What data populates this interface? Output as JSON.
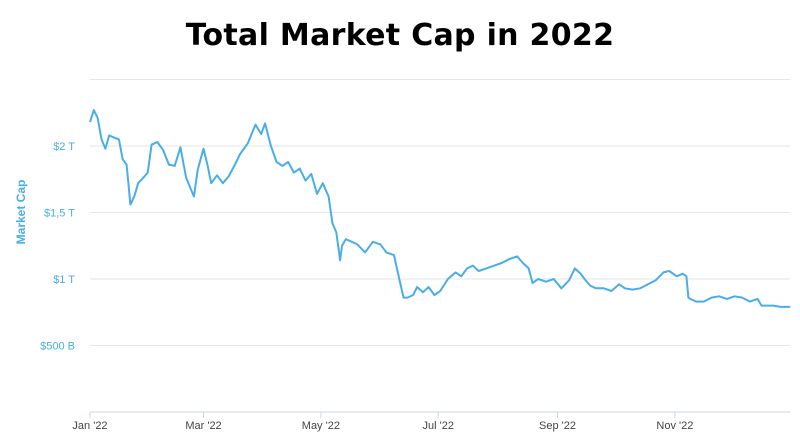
{
  "chart_data": {
    "type": "line",
    "title": "Total Market Cap in 2022",
    "xlabel": "",
    "ylabel": "Market Cap",
    "x_tick_labels": [
      "Jan '22",
      "Mar '22",
      "May '22",
      "Jul '22",
      "Sep '22",
      "Nov '22"
    ],
    "y_tick_labels": [
      "$500 B",
      "$1 T",
      "$1,5 T",
      "$2 T"
    ],
    "y_tick_values": [
      500,
      1000,
      1500,
      2000
    ],
    "ylim": [
      0,
      2550
    ],
    "grid": true,
    "line_color": "#4aaee6",
    "unit": "billions USD",
    "series": [
      {
        "x": [
          "2022-01-01",
          "2022-01-03",
          "2022-01-05",
          "2022-01-07",
          "2022-01-09",
          "2022-01-11",
          "2022-01-14",
          "2022-01-16",
          "2022-01-18",
          "2022-01-20",
          "2022-01-22",
          "2022-01-24",
          "2022-01-26",
          "2022-01-28",
          "2022-01-31",
          "2022-02-02",
          "2022-02-05",
          "2022-02-08",
          "2022-02-11",
          "2022-02-14",
          "2022-02-17",
          "2022-02-20",
          "2022-02-24",
          "2022-02-26",
          "2022-03-01",
          "2022-03-03",
          "2022-03-05",
          "2022-03-08",
          "2022-03-11",
          "2022-03-14",
          "2022-03-17",
          "2022-03-20",
          "2022-03-24",
          "2022-03-28",
          "2022-03-31",
          "2022-04-02",
          "2022-04-05",
          "2022-04-08",
          "2022-04-11",
          "2022-04-14",
          "2022-04-17",
          "2022-04-20",
          "2022-04-23",
          "2022-04-26",
          "2022-04-29",
          "2022-05-02",
          "2022-05-05",
          "2022-05-07",
          "2022-05-09",
          "2022-05-10",
          "2022-05-11",
          "2022-05-12",
          "2022-05-14",
          "2022-05-17",
          "2022-05-20",
          "2022-05-24",
          "2022-05-28",
          "2022-06-01",
          "2022-06-04",
          "2022-06-08",
          "2022-06-10",
          "2022-06-12",
          "2022-06-13",
          "2022-06-15",
          "2022-06-18",
          "2022-06-20",
          "2022-06-23",
          "2022-06-26",
          "2022-06-29",
          "2022-07-02",
          "2022-07-06",
          "2022-07-10",
          "2022-07-13",
          "2022-07-16",
          "2022-07-19",
          "2022-07-22",
          "2022-07-26",
          "2022-07-30",
          "2022-08-03",
          "2022-08-07",
          "2022-08-11",
          "2022-08-14",
          "2022-08-17",
          "2022-08-19",
          "2022-08-22",
          "2022-08-26",
          "2022-08-30",
          "2022-09-03",
          "2022-09-07",
          "2022-09-10",
          "2022-09-13",
          "2022-09-15",
          "2022-09-18",
          "2022-09-21",
          "2022-09-25",
          "2022-09-29",
          "2022-10-03",
          "2022-10-06",
          "2022-10-10",
          "2022-10-14",
          "2022-10-18",
          "2022-10-22",
          "2022-10-26",
          "2022-10-29",
          "2022-11-02",
          "2022-11-05",
          "2022-11-07",
          "2022-11-08",
          "2022-11-09",
          "2022-11-12",
          "2022-11-16",
          "2022-11-20",
          "2022-11-24",
          "2022-11-28",
          "2022-12-02",
          "2022-12-06",
          "2022-12-10",
          "2022-12-14",
          "2022-12-16",
          "2022-12-18",
          "2022-12-22",
          "2022-12-26",
          "2022-12-31"
        ],
        "y": [
          2180,
          2270,
          2210,
          2050,
          1980,
          2080,
          2060,
          2050,
          1900,
          1860,
          1560,
          1620,
          1720,
          1750,
          1800,
          2010,
          2030,
          1970,
          1860,
          1850,
          1990,
          1760,
          1620,
          1820,
          1980,
          1860,
          1720,
          1780,
          1720,
          1770,
          1850,
          1940,
          2020,
          2160,
          2090,
          2170,
          2000,
          1880,
          1850,
          1880,
          1800,
          1830,
          1740,
          1790,
          1640,
          1720,
          1620,
          1420,
          1350,
          1250,
          1140,
          1250,
          1300,
          1280,
          1260,
          1200,
          1280,
          1260,
          1200,
          1180,
          1050,
          920,
          860,
          860,
          880,
          940,
          900,
          940,
          880,
          910,
          1000,
          1050,
          1020,
          1080,
          1100,
          1060,
          1080,
          1100,
          1120,
          1150,
          1170,
          1120,
          1080,
          970,
          1000,
          980,
          1000,
          930,
          990,
          1080,
          1040,
          1000,
          950,
          930,
          930,
          910,
          960,
          930,
          920,
          930,
          960,
          990,
          1050,
          1060,
          1020,
          1040,
          1020,
          860,
          850,
          830,
          830,
          860,
          870,
          850,
          870,
          860,
          830,
          850,
          800,
          800,
          800,
          790,
          790
        ]
      }
    ]
  }
}
